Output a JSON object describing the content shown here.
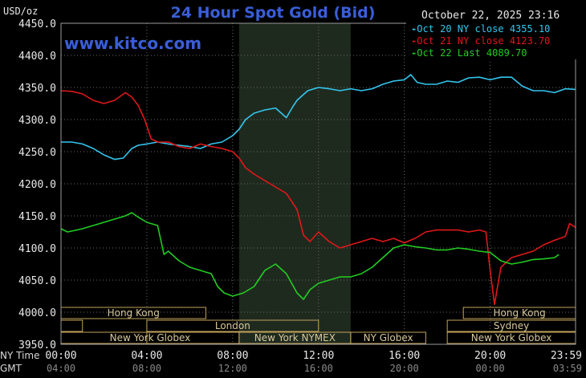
{
  "header": {
    "title": "24 Hour Spot Gold (Bid)",
    "ylabel": "USD/oz",
    "date": "October 22, 2025 23:16",
    "watermark": "www.kitco.com"
  },
  "legend": [
    {
      "label": "Oct 20 NY close 4355.10",
      "color": "#33c6ee"
    },
    {
      "label": "Oct 21 NY close 4123.70",
      "color": "#e01818"
    },
    {
      "label": "Oct 22 Last 4089.70",
      "color": "#22cc22"
    }
  ],
  "colors": {
    "title": "#3a5ed8",
    "session_box": "#c2a35a",
    "highlight": "#1f2a1f",
    "grid": "#6a6a6a"
  },
  "xaxis": {
    "ny_label": "NY Time",
    "gmt_label": "GMT",
    "ny_ticks": [
      "00:00",
      "04:00",
      "08:00",
      "12:00",
      "16:00",
      "20:00",
      "23:59"
    ],
    "gmt_ticks": [
      "04:00",
      "08:00",
      "12:00",
      "16:00",
      "20:00",
      "00:00",
      "03:59"
    ]
  },
  "sessions": [
    {
      "label": "Hong Kong",
      "row": 1,
      "start": 0,
      "end": 6.75
    },
    {
      "label": "Hong Kong",
      "row": 1,
      "start": 18.75,
      "end": 23.98
    },
    {
      "label": "",
      "row": 2,
      "start": 0,
      "end": 1.0
    },
    {
      "label": "London",
      "row": 2,
      "start": 4.0,
      "end": 12.0
    },
    {
      "label": "Sydney",
      "row": 2,
      "start": 18.0,
      "end": 23.98
    },
    {
      "label": "",
      "row": 3,
      "start": 0,
      "end": 4.0
    },
    {
      "label": "New York Globex",
      "row": 3,
      "start": 0,
      "end": 8.3
    },
    {
      "label": "New York NYMEX",
      "row": 3,
      "start": 8.3,
      "end": 13.5
    },
    {
      "label": "NY Globex",
      "row": 3,
      "start": 13.5,
      "end": 17.0
    },
    {
      "label": "New York Globex",
      "row": 3,
      "start": 18.0,
      "end": 23.98
    }
  ],
  "chart_data": {
    "type": "line",
    "title": "24 Hour Spot Gold (Bid)",
    "ylabel": "USD/oz",
    "xlabel": "NY Time / GMT",
    "ylim": [
      3950,
      4450
    ],
    "xlim": [
      0,
      23.98
    ],
    "y_ticks": [
      3950,
      4000,
      4050,
      4100,
      4150,
      4200,
      4250,
      4300,
      4350,
      4400,
      4450
    ],
    "y_tick_labels": [
      "3950.0",
      "4000.0",
      "4050.0",
      "4100.0",
      "4150.0",
      "4200.0",
      "4250.0",
      "4300.0",
      "4350.0",
      "4400.0",
      "4450.0"
    ],
    "highlight_range": [
      8.3,
      13.5
    ],
    "grid": true,
    "legend_position": "top-right",
    "series": [
      {
        "name": "Oct 20 NY close 4355.10",
        "color": "#33c6ee",
        "x": [
          0.0,
          0.5,
          1.0,
          1.5,
          2.0,
          2.5,
          2.9,
          3.3,
          3.6,
          4.0,
          4.5,
          5.0,
          5.5,
          6.0,
          6.5,
          7.0,
          7.5,
          8.0,
          8.3,
          8.6,
          9.0,
          9.5,
          10.0,
          10.5,
          10.8,
          11.0,
          11.5,
          12.0,
          12.5,
          13.0,
          13.5,
          14.0,
          14.5,
          15.0,
          15.5,
          16.0,
          16.3,
          16.6,
          17.0,
          17.5,
          18.0,
          18.5,
          19.0,
          19.5,
          20.0,
          20.5,
          21.0,
          21.5,
          22.0,
          22.5,
          23.0,
          23.5,
          23.98
        ],
        "y": [
          4265,
          4265,
          4262,
          4255,
          4245,
          4238,
          4240,
          4255,
          4260,
          4262,
          4265,
          4262,
          4260,
          4258,
          4255,
          4262,
          4265,
          4275,
          4285,
          4300,
          4310,
          4315,
          4318,
          4303,
          4320,
          4330,
          4345,
          4350,
          4348,
          4345,
          4348,
          4345,
          4348,
          4355,
          4360,
          4362,
          4370,
          4358,
          4355,
          4355,
          4360,
          4358,
          4365,
          4366,
          4362,
          4366,
          4366,
          4352,
          4345,
          4345,
          4342,
          4348,
          4347
        ]
      },
      {
        "name": "Oct 21 NY close 4123.70",
        "color": "#e01818",
        "x": [
          0.0,
          0.5,
          1.0,
          1.5,
          2.0,
          2.5,
          3.0,
          3.3,
          3.6,
          3.9,
          4.2,
          4.5,
          5.0,
          5.5,
          6.0,
          6.5,
          7.0,
          7.5,
          8.0,
          8.3,
          8.6,
          9.0,
          9.5,
          10.0,
          10.5,
          11.0,
          11.3,
          11.6,
          12.0,
          12.5,
          13.0,
          13.5,
          14.0,
          14.5,
          15.0,
          15.5,
          16.0,
          16.5,
          17.0,
          17.5,
          18.0,
          18.5,
          19.0,
          19.5,
          19.8,
          20.0,
          20.2,
          20.5,
          21.0,
          21.5,
          22.0,
          22.5,
          23.0,
          23.5,
          23.7,
          23.98
        ],
        "y": [
          4345,
          4344,
          4340,
          4330,
          4325,
          4330,
          4342,
          4335,
          4322,
          4300,
          4270,
          4265,
          4265,
          4258,
          4255,
          4262,
          4258,
          4255,
          4250,
          4240,
          4225,
          4215,
          4205,
          4195,
          4185,
          4160,
          4120,
          4110,
          4125,
          4110,
          4100,
          4105,
          4110,
          4115,
          4110,
          4115,
          4108,
          4115,
          4125,
          4128,
          4128,
          4128,
          4125,
          4128,
          4125,
          4065,
          4012,
          4070,
          4085,
          4090,
          4095,
          4105,
          4112,
          4118,
          4138,
          4132
        ]
      },
      {
        "name": "Oct 22 Last 4089.70",
        "color": "#22cc22",
        "x": [
          0.0,
          0.3,
          0.6,
          1.0,
          1.5,
          2.0,
          2.5,
          3.0,
          3.3,
          3.6,
          4.0,
          4.5,
          4.8,
          5.0,
          5.5,
          6.0,
          6.5,
          7.0,
          7.3,
          7.6,
          8.0,
          8.5,
          9.0,
          9.5,
          10.0,
          10.5,
          11.0,
          11.3,
          11.6,
          12.0,
          12.5,
          13.0,
          13.5,
          14.0,
          14.5,
          15.0,
          15.5,
          16.0,
          16.5,
          17.0,
          17.5,
          18.0,
          18.5,
          19.0,
          19.5,
          20.0,
          20.5,
          21.0,
          21.5,
          22.0,
          22.5,
          23.0,
          23.2
        ],
        "y": [
          4130,
          4125,
          4127,
          4130,
          4135,
          4140,
          4145,
          4150,
          4155,
          4148,
          4140,
          4135,
          4090,
          4095,
          4080,
          4070,
          4065,
          4060,
          4040,
          4030,
          4025,
          4030,
          4040,
          4065,
          4075,
          4060,
          4030,
          4020,
          4035,
          4045,
          4050,
          4055,
          4055,
          4060,
          4070,
          4085,
          4100,
          4105,
          4102,
          4100,
          4097,
          4097,
          4100,
          4098,
          4095,
          4093,
          4080,
          4075,
          4078,
          4082,
          4083,
          4085,
          4089.7
        ]
      }
    ]
  }
}
